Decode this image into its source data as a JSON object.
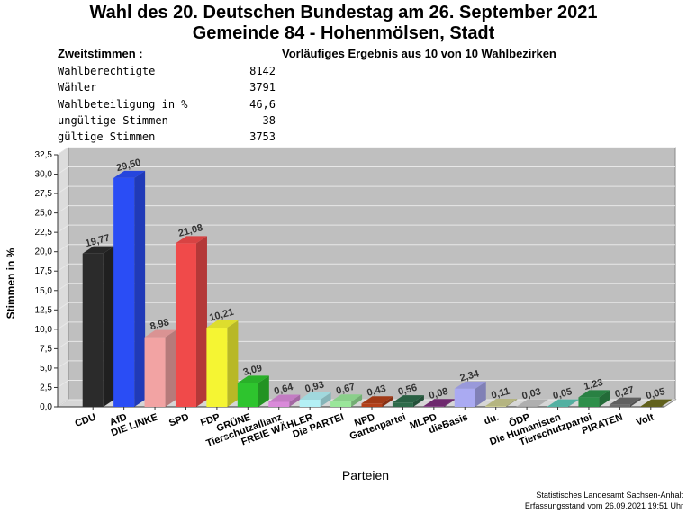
{
  "header": {
    "title_line1": "Wahl des 20. Deutschen Bundestag am 26. September 2021",
    "title_line2": "Gemeinde 84 - Hohenmölsen, Stadt",
    "section_label": "Zweitstimmen :",
    "status": "Vorläufiges Ergebnis aus 10 von 10 Wahlbezirken"
  },
  "stats": [
    {
      "label": "Wahlberechtigte",
      "value": "8142"
    },
    {
      "label": "Wähler",
      "value": "3791"
    },
    {
      "label": "Wahlbeteiligung in %",
      "value": "46,6"
    },
    {
      "label": "ungültige Stimmen",
      "value": "38"
    },
    {
      "label": "gültige Stimmen",
      "value": "3753"
    }
  ],
  "footer": {
    "line1": "Statistisches Landesamt Sachsen-Anhalt",
    "line2": "Erfassungsstand vom 26.09.2021 19:51 Uhr"
  },
  "chart_data": {
    "type": "bar",
    "title": "",
    "xlabel": "Parteien",
    "ylabel": "Stimmen in %",
    "ylim": [
      0,
      32.5
    ],
    "yticks": [
      "0,0",
      "2,5",
      "5,0",
      "7,5",
      "10,0",
      "12,5",
      "15,0",
      "17,5",
      "20,0",
      "22,5",
      "25,0",
      "27,5",
      "30,0",
      "32,5"
    ],
    "grid": true,
    "categories": [
      "CDU",
      "AfD",
      "DIE LINKE",
      "SPD",
      "FDP",
      "GRÜNE",
      "Tierschutzallianz",
      "FREIE WÄHLER",
      "Die PARTEI",
      "NPD",
      "Gartenpartei",
      "MLPD",
      "dieBasis",
      "du.",
      "ÖDP",
      "Die Humanisten",
      "Tierschutzpartei",
      "PIRATEN",
      "Volt"
    ],
    "values": [
      19.77,
      29.5,
      8.98,
      21.08,
      10.21,
      3.09,
      0.64,
      0.93,
      0.67,
      0.43,
      0.56,
      0.08,
      2.34,
      0.11,
      0.03,
      0.05,
      1.23,
      0.27,
      0.05
    ],
    "value_labels": [
      "19,77",
      "29,50",
      "8,98",
      "21,08",
      "10,21",
      "3,09",
      "0,64",
      "0,93",
      "0,67",
      "0,43",
      "0,56",
      "0,08",
      "2,34",
      "0,11",
      "0,03",
      "0,05",
      "1,23",
      "0,27",
      "0,05"
    ],
    "colors": [
      "#2b2b2b",
      "#2a4df5",
      "#f2a3a3",
      "#f04a4a",
      "#f5f533",
      "#2ec42e",
      "#d98ad9",
      "#b3f0f5",
      "#99e699",
      "#b3401a",
      "#2e6b4a",
      "#7a2e7a",
      "#aaaaf2",
      "#c9c98f",
      "#c2c2c2",
      "#5cc4b3",
      "#2e8f4a",
      "#6b6b6b",
      "#6b6b1f"
    ]
  }
}
